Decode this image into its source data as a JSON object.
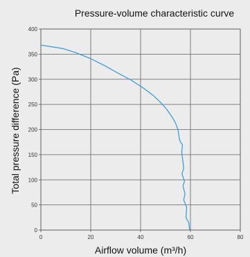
{
  "chart_data": {
    "type": "line",
    "title": "Pressure-volume characteristic curve",
    "xlabel": "Airflow volume (m³/h)",
    "ylabel": "Total pressure difference (Pa)",
    "xlim": [
      0,
      80
    ],
    "ylim": [
      0,
      400
    ],
    "xticks": [
      0,
      20,
      40,
      60,
      80
    ],
    "yticks": [
      0,
      50,
      100,
      150,
      200,
      250,
      300,
      350,
      400
    ],
    "grid": true,
    "series": [
      {
        "color": "#2a9bd8",
        "x": [
          0,
          4,
          9,
          14,
          20,
          26,
          31,
          36,
          41,
          45,
          48,
          50.5,
          52.5,
          54,
          55,
          55.6,
          56,
          56.8,
          56.5,
          56.9,
          57.3,
          56.6,
          57.6,
          57,
          57.8,
          57.3,
          58.5,
          58.2,
          59.3,
          59.7
        ],
        "y": [
          368,
          365,
          361,
          353,
          341,
          326,
          312,
          299,
          283,
          268,
          254,
          240,
          226,
          213,
          200,
          180,
          175,
          170,
          155,
          140,
          123,
          112,
          97,
          88,
          72,
          60,
          45,
          25,
          15,
          0
        ]
      }
    ]
  }
}
